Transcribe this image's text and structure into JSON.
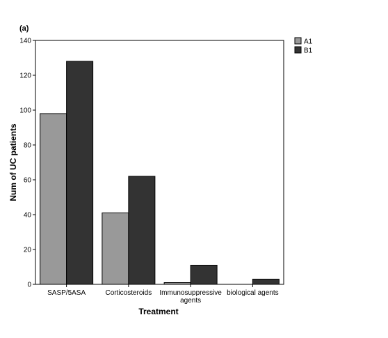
{
  "panel_label": "(a)",
  "chart_data": {
    "type": "bar",
    "xlabel": "Treatment",
    "ylabel": "Num of UC patients",
    "ylim": [
      0,
      140
    ],
    "yticks": [
      0,
      20,
      40,
      60,
      80,
      100,
      120,
      140
    ],
    "categories": [
      [
        "SASP/5ASA"
      ],
      [
        "Corticosteroids"
      ],
      [
        "Immunosuppressive",
        "agents"
      ],
      [
        "biological agents"
      ]
    ],
    "series": [
      {
        "name": "A1",
        "color": "#999999",
        "values": [
          98,
          41,
          1,
          0
        ]
      },
      {
        "name": "B1",
        "color": "#333333",
        "values": [
          128,
          62,
          11,
          3
        ]
      }
    ],
    "legend_position": "top-right",
    "grid": false
  }
}
